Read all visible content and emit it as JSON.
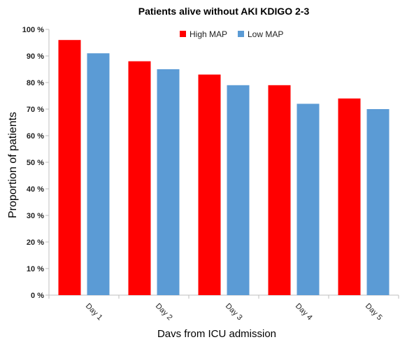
{
  "chart_data": {
    "type": "bar",
    "title": "Patients alive without AKI KDIGO 2-3",
    "xlabel": "Davs from ICU admission",
    "ylabel": "Proportion of patients",
    "categories": [
      "Day 1",
      "Day 2",
      "Day 3",
      "Day 4",
      "Day 5"
    ],
    "series": [
      {
        "name": "High MAP",
        "color": "#ff0000",
        "values": [
          96,
          88,
          83,
          79,
          74
        ]
      },
      {
        "name": "Low MAP",
        "color": "#5b9bd5",
        "values": [
          91,
          85,
          79,
          72,
          70
        ]
      }
    ],
    "ylim": [
      0,
      100
    ],
    "yticks": [
      0,
      10,
      20,
      30,
      40,
      50,
      60,
      70,
      80,
      90,
      100
    ],
    "ytick_labels": [
      "0 %",
      "10 %",
      "20 %",
      "30 %",
      "40 %",
      "50 %",
      "60 %",
      "70 %",
      "80 %",
      "90 %",
      "100 %"
    ],
    "grid": false,
    "legend_position": "top-center"
  }
}
